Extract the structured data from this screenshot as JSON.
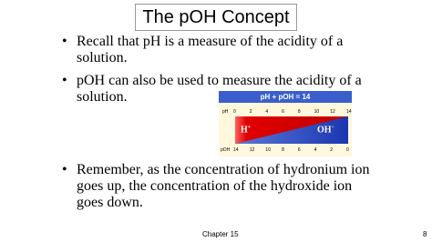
{
  "title": "The pOH Concept",
  "bullets": [
    {
      "lines": [
        "Recall that pH is a measure of the acidity of a",
        "solution."
      ]
    },
    {
      "lines": [
        "pOH can also be used to measure the acidity of a",
        "solution."
      ]
    },
    {
      "lines": [
        "Remember, as the concentration of hydronium ion",
        "goes up, the concentration of the hydroxide ion",
        "goes down."
      ]
    }
  ],
  "figure": {
    "title": "pH + pOH = 14",
    "ph_label": "pH",
    "ph_scale": [
      0,
      2,
      4,
      6,
      8,
      10,
      12,
      14
    ],
    "poh_label": "pOH",
    "poh_scale": [
      14,
      12,
      10,
      8,
      6,
      4,
      2,
      0
    ],
    "acid": {
      "text": "H",
      "sup": "+"
    },
    "base": {
      "text": "OH",
      "sup": "−"
    }
  },
  "footer": {
    "chapter": "Chapter 15",
    "page": "8"
  }
}
